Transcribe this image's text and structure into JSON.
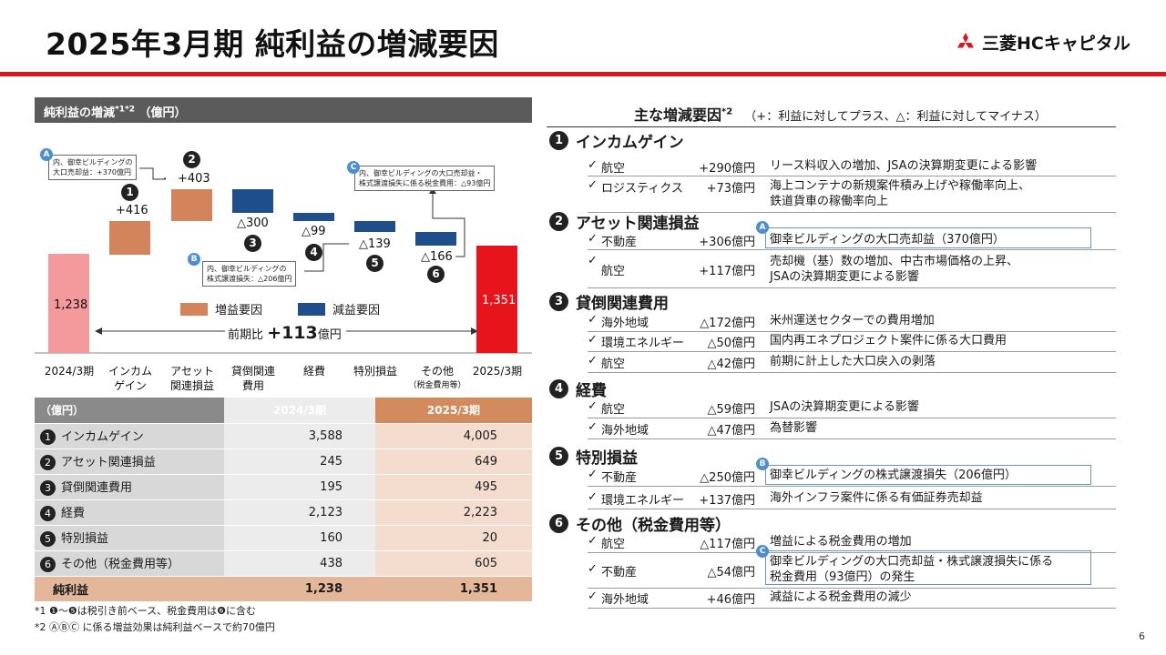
{
  "title": "2025年3月期 純利益の増減要因",
  "logo": {
    "text": "三菱HCキャピタル",
    "color": "#d7161d"
  },
  "left_panel": {
    "header": "純利益の増減",
    "header_sup": "*1*2",
    "header_unit": "（億円）"
  },
  "chart_data": {
    "type": "bar",
    "subtype": "waterfall",
    "unit": "億円",
    "categories": [
      "2024/3期",
      "インカム\nゲイン",
      "アセット\n関連損益",
      "貸倒関連\n費用",
      "経費",
      "特別損益",
      "その他\n（税金費用等）",
      "2025/3期"
    ],
    "steps": [
      {
        "label": "1,238",
        "value": 1238,
        "kind": "start"
      },
      {
        "label": "+416",
        "value": 416,
        "kind": "increase"
      },
      {
        "label": "+403",
        "value": 403,
        "kind": "increase"
      },
      {
        "label": "△300",
        "value": -300,
        "kind": "decrease"
      },
      {
        "label": "△99",
        "value": -99,
        "kind": "decrease"
      },
      {
        "label": "△139",
        "value": -139,
        "kind": "decrease"
      },
      {
        "label": "△166",
        "value": -166,
        "kind": "decrease"
      },
      {
        "label": "1,351",
        "value": 1351,
        "kind": "end"
      }
    ],
    "step_numbers": [
      "1",
      "2",
      "3",
      "4",
      "5",
      "6"
    ],
    "legend": [
      {
        "name": "増益要因",
        "color": "#d4845a"
      },
      {
        "name": "減益要因",
        "color": "#1f4e8c"
      }
    ],
    "colors": {
      "start": "#f4999c",
      "end": "#e8141c",
      "increase": "#d4845a",
      "decrease": "#1f4e8c"
    },
    "comparison": {
      "prefix": "前期比",
      "value": "+113",
      "unit": "億円"
    },
    "notes": {
      "A": {
        "badge": "A",
        "line1": "内、御幸ビルディングの",
        "line2": "大口売却益：+370億円"
      },
      "B": {
        "badge": "B",
        "line1": "内、御幸ビルディングの",
        "line2": "株式譲渡損失：△206億円"
      },
      "C": {
        "badge": "C",
        "line1": "内、御幸ビルディングの大口売却益・",
        "line2": "株式譲渡損失に係る税金費用：△93億円"
      }
    }
  },
  "xlabels": [
    {
      "l1": "2024/3期",
      "l2": "",
      "small": ""
    },
    {
      "l1": "インカム",
      "l2": "ゲイン",
      "small": ""
    },
    {
      "l1": "アセット",
      "l2": "関連損益",
      "small": ""
    },
    {
      "l1": "貸倒関連",
      "l2": "費用",
      "small": ""
    },
    {
      "l1": "経費",
      "l2": "",
      "small": ""
    },
    {
      "l1": "特別損益",
      "l2": "",
      "small": ""
    },
    {
      "l1": "その他",
      "l2": "",
      "small": "（税金費用等）"
    },
    {
      "l1": "2025/3期",
      "l2": "",
      "small": ""
    }
  ],
  "table": {
    "unit": "（億円）",
    "col1": "2024/3期",
    "col2": "2025/3期",
    "rows": [
      {
        "n": "1",
        "label": "インカムゲイン",
        "v1": "3,588",
        "v2": "4,005"
      },
      {
        "n": "2",
        "label": "アセット関連損益",
        "v1": "245",
        "v2": "649"
      },
      {
        "n": "3",
        "label": "貸倒関連費用",
        "v1": "195",
        "v2": "495"
      },
      {
        "n": "4",
        "label": "経費",
        "v1": "2,123",
        "v2": "2,223"
      },
      {
        "n": "5",
        "label": "特別損益",
        "v1": "160",
        "v2": "20"
      },
      {
        "n": "6",
        "label": "その他（税金費用等）",
        "v1": "438",
        "v2": "605"
      }
    ],
    "total": {
      "label": "純利益",
      "v1": "1,238",
      "v2": "1,351"
    }
  },
  "footnotes": {
    "f1": "*1 ❶～❺は税引き前ベース、税金費用は❻に含む",
    "f2": "*2 ⒶⒷⒸ に係る増益効果は純利益ベースで約70億円"
  },
  "right_panel": {
    "title": "主な増減要因",
    "title_sup": "*2",
    "subtitle": "（+：利益に対してプラス、△：利益に対してマイナス）",
    "sections": [
      {
        "n": "1",
        "title": "インカムゲイン",
        "rows": [
          {
            "cat": "航空",
            "amt": "+290億円",
            "desc": "リース料収入の増加、JSAの決算期変更による影響"
          },
          {
            "cat": "ロジスティクス",
            "amt": "+73億円",
            "desc": "海上コンテナの新規案件積み上げや稼働率向上、",
            "desc2": "鉄道貨車の稼働率向上"
          }
        ]
      },
      {
        "n": "2",
        "title": "アセット関連損益",
        "rows": [
          {
            "cat": "不動産",
            "amt": "+306億円",
            "desc": "御幸ビルディングの大口売却益（370億円）",
            "badge": "A"
          },
          {
            "cat": "航空",
            "amt": "+117億円",
            "desc": "売却機（基）数の増加、中古市場価格の上昇、",
            "desc2": "JSAの決算期変更による影響"
          }
        ]
      },
      {
        "n": "3",
        "title": "貸倒関連費用",
        "rows": [
          {
            "cat": "海外地域",
            "amt": "△172億円",
            "desc": "米州運送セクターでの費用増加"
          },
          {
            "cat": "環境エネルギー",
            "amt": "△50億円",
            "desc": "国内再エネプロジェクト案件に係る大口費用"
          },
          {
            "cat": "航空",
            "amt": "△42億円",
            "desc": "前期に計上した大口戻入の剥落"
          }
        ]
      },
      {
        "n": "4",
        "title": "経費",
        "rows": [
          {
            "cat": "航空",
            "amt": "△59億円",
            "desc": "JSAの決算期変更による影響"
          },
          {
            "cat": "海外地域",
            "amt": "△47億円",
            "desc": "為替影響"
          }
        ]
      },
      {
        "n": "5",
        "title": "特別損益",
        "rows": [
          {
            "cat": "不動産",
            "amt": "△250億円",
            "desc": "御幸ビルディングの株式譲渡損失（206億円）",
            "badge": "B"
          },
          {
            "cat": "環境エネルギー",
            "amt": "+137億円",
            "desc": "海外インフラ案件に係る有価証券売却益"
          }
        ]
      },
      {
        "n": "6",
        "title": "その他（税金費用等）",
        "rows": [
          {
            "cat": "航空",
            "amt": "△117億円",
            "desc": "増益による税金費用の増加"
          },
          {
            "cat": "不動産",
            "amt": "△54億円",
            "desc": "御幸ビルディングの大口売却益・株式譲渡損失に係る",
            "desc2": "税金費用（93億円）の発生",
            "badge": "C"
          },
          {
            "cat": "海外地域",
            "amt": "+46億円",
            "desc": "減益による税金費用の減少"
          }
        ]
      }
    ]
  },
  "check_mark": "✓",
  "page_number": "6"
}
